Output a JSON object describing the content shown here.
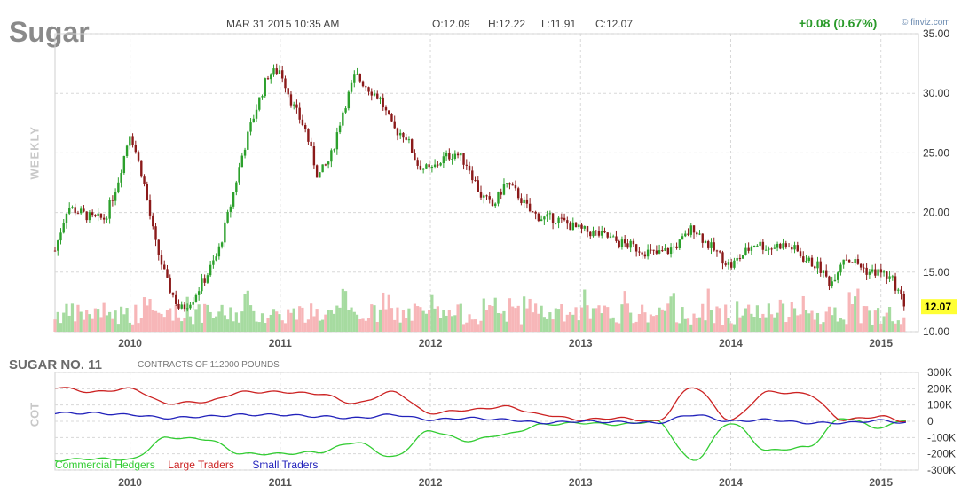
{
  "header": {
    "symbol": "Sugar",
    "datetime": "MAR 31 2015 10:35 AM",
    "open": "O:12.09",
    "high": "H:12.22",
    "low": "L:11.91",
    "close": "C:12.07",
    "change": "+0.08 (0.67%)",
    "source": "© finviz.com"
  },
  "price_panel": {
    "timeframe": "WEEKLY",
    "last_price": "12.07"
  },
  "cot_panel": {
    "title": "SUGAR NO. 11",
    "subtitle": "CONTRACTS OF 112000 POUNDS",
    "side_label": "COT"
  },
  "colors": {
    "up": "#2ca02c",
    "down": "#8b1a1a",
    "vol_up": "#a6dba0",
    "vol_down": "#f7b6b8",
    "commercial": "#33cc33",
    "large": "#cc2222",
    "small": "#2222bb",
    "last_price_bg": "#ffff33"
  },
  "chart_data": [
    {
      "type": "candlestick",
      "title": "Sugar",
      "ylim": [
        10,
        35
      ],
      "yticks": [
        "35.00",
        "30.00",
        "25.00",
        "20.00",
        "15.00",
        "10.00"
      ],
      "xticks": [
        "2010",
        "2011",
        "2012",
        "2013",
        "2014",
        "2015"
      ],
      "x_range": [
        "2009-07",
        "2015-03"
      ],
      "grid": true,
      "price_path": [
        [
          "2009-07",
          16.8
        ],
        [
          "2009-08",
          20.5
        ],
        [
          "2009-09",
          20.0
        ],
        [
          "2009-10",
          19.5
        ],
        [
          "2009-11",
          19.5
        ],
        [
          "2009-12",
          22.5
        ],
        [
          "2010-01",
          26.8
        ],
        [
          "2010-02",
          23.0
        ],
        [
          "2010-03",
          17.5
        ],
        [
          "2010-04",
          14.0
        ],
        [
          "2010-05",
          11.8
        ],
        [
          "2010-06",
          12.8
        ],
        [
          "2010-07",
          14.5
        ],
        [
          "2010-08",
          16.5
        ],
        [
          "2010-09",
          20.5
        ],
        [
          "2010-10",
          25.0
        ],
        [
          "2010-11",
          28.5
        ],
        [
          "2010-12",
          31.5
        ],
        [
          "2011-01",
          32.0
        ],
        [
          "2011-02",
          29.0
        ],
        [
          "2011-03",
          27.0
        ],
        [
          "2011-04",
          23.0
        ],
        [
          "2011-05",
          24.5
        ],
        [
          "2011-06",
          28.5
        ],
        [
          "2011-07",
          31.5
        ],
        [
          "2011-08",
          30.5
        ],
        [
          "2011-09",
          29.5
        ],
        [
          "2011-10",
          27.0
        ],
        [
          "2011-11",
          26.5
        ],
        [
          "2011-12",
          24.0
        ],
        [
          "2012-01",
          23.5
        ],
        [
          "2012-02",
          24.5
        ],
        [
          "2012-03",
          25.0
        ],
        [
          "2012-04",
          24.0
        ],
        [
          "2012-05",
          21.5
        ],
        [
          "2012-06",
          20.5
        ],
        [
          "2012-07",
          22.5
        ],
        [
          "2012-08",
          21.5
        ],
        [
          "2012-09",
          20.0
        ],
        [
          "2012-10",
          19.5
        ],
        [
          "2012-11",
          19.5
        ],
        [
          "2012-12",
          19.0
        ],
        [
          "2013-01",
          18.5
        ],
        [
          "2013-02",
          18.3
        ],
        [
          "2013-03",
          18.0
        ],
        [
          "2013-04",
          17.5
        ],
        [
          "2013-05",
          17.2
        ],
        [
          "2013-06",
          16.8
        ],
        [
          "2013-07",
          16.5
        ],
        [
          "2013-08",
          16.8
        ],
        [
          "2013-09",
          17.5
        ],
        [
          "2013-10",
          18.8
        ],
        [
          "2013-11",
          17.5
        ],
        [
          "2013-12",
          16.5
        ],
        [
          "2014-01",
          15.5
        ],
        [
          "2014-02",
          16.5
        ],
        [
          "2014-03",
          17.5
        ],
        [
          "2014-04",
          17.0
        ],
        [
          "2014-05",
          17.3
        ],
        [
          "2014-06",
          17.0
        ],
        [
          "2014-07",
          16.0
        ],
        [
          "2014-08",
          15.5
        ],
        [
          "2014-09",
          14.0
        ],
        [
          "2014-10",
          16.3
        ],
        [
          "2014-11",
          15.8
        ],
        [
          "2014-12",
          15.0
        ],
        [
          "2015-01",
          15.0
        ],
        [
          "2015-02",
          14.2
        ],
        [
          "2015-03",
          12.07
        ]
      ]
    },
    {
      "type": "line",
      "title": "SUGAR NO. 11",
      "ylim": [
        -300000,
        300000
      ],
      "yticks": [
        "300K",
        "200K",
        "100K",
        "0",
        "-100K",
        "-200K",
        "-300K"
      ],
      "xticks": [
        "2010",
        "2011",
        "2012",
        "2013",
        "2014",
        "2015"
      ],
      "series": [
        {
          "name": "Commercial Hedgers",
          "x": [
            "2009-07",
            "2009-10",
            "2010-01",
            "2010-04",
            "2010-07",
            "2010-10",
            "2011-01",
            "2011-04",
            "2011-07",
            "2011-10",
            "2012-01",
            "2012-04",
            "2012-07",
            "2012-10",
            "2013-01",
            "2013-04",
            "2013-07",
            "2013-10",
            "2014-01",
            "2014-04",
            "2014-07",
            "2014-10",
            "2015-01",
            "2015-03"
          ],
          "values": [
            -240000,
            -230000,
            -235000,
            -100000,
            -110000,
            -200000,
            -200000,
            -190000,
            -130000,
            -220000,
            -60000,
            -120000,
            -80000,
            -20000,
            -10000,
            -20000,
            0,
            -240000,
            -10000,
            -180000,
            -160000,
            20000,
            -40000,
            10000
          ]
        },
        {
          "name": "Large Traders",
          "x": [
            "2009-07",
            "2009-10",
            "2010-01",
            "2010-04",
            "2010-07",
            "2010-10",
            "2011-01",
            "2011-04",
            "2011-07",
            "2011-10",
            "2012-01",
            "2012-04",
            "2012-07",
            "2012-10",
            "2013-01",
            "2013-04",
            "2013-07",
            "2013-10",
            "2014-01",
            "2014-04",
            "2014-07",
            "2014-10",
            "2015-01",
            "2015-03"
          ],
          "values": [
            210000,
            180000,
            200000,
            110000,
            120000,
            180000,
            180000,
            170000,
            110000,
            180000,
            50000,
            70000,
            90000,
            40000,
            10000,
            20000,
            0,
            210000,
            10000,
            180000,
            170000,
            10000,
            30000,
            0
          ]
        },
        {
          "name": "Small Traders",
          "x": [
            "2009-07",
            "2009-10",
            "2010-01",
            "2010-04",
            "2010-07",
            "2010-10",
            "2011-01",
            "2011-04",
            "2011-07",
            "2011-10",
            "2012-01",
            "2012-04",
            "2012-07",
            "2012-10",
            "2013-01",
            "2013-04",
            "2013-07",
            "2013-10",
            "2014-01",
            "2014-04",
            "2014-07",
            "2014-10",
            "2015-01",
            "2015-03"
          ],
          "values": [
            50000,
            50000,
            40000,
            20000,
            30000,
            40000,
            40000,
            30000,
            20000,
            40000,
            10000,
            20000,
            10000,
            -10000,
            0,
            -5000,
            -10000,
            40000,
            0,
            10000,
            -10000,
            -10000,
            5000,
            -10000
          ]
        }
      ]
    }
  ]
}
